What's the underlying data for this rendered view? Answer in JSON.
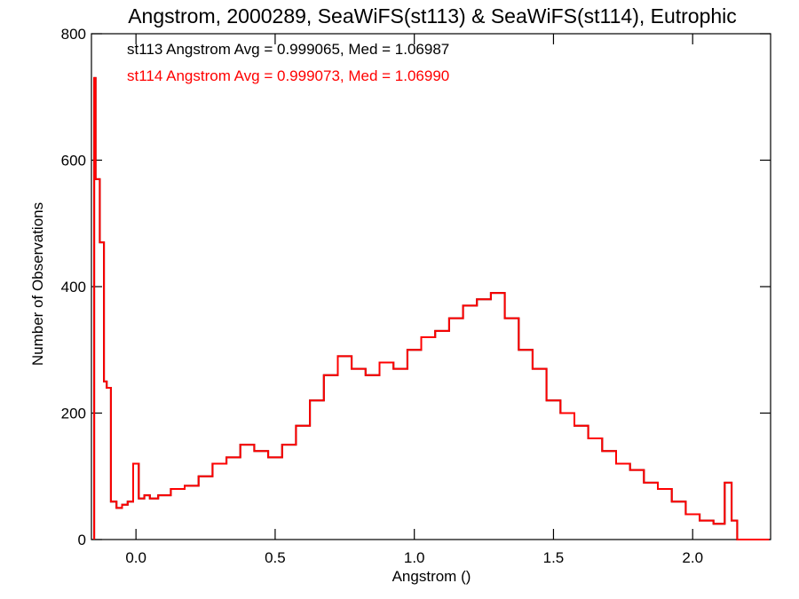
{
  "chart_data": {
    "type": "histogram",
    "title": "Angstrom, 2000289, SeaWiFS(st113) & SeaWiFS(st114), Eutrophic",
    "xlabel": "Angstrom ()",
    "ylabel": "Number of Observations",
    "xlim": [
      -0.16,
      2.28
    ],
    "ylim": [
      0,
      800
    ],
    "x_ticks": [
      0.0,
      0.5,
      1.0,
      1.5,
      2.0
    ],
    "x_tick_labels": [
      "0.0",
      "0.5",
      "1.0",
      "1.5",
      "2.0"
    ],
    "y_ticks": [
      0,
      200,
      400,
      600,
      800
    ],
    "y_tick_labels": [
      "0",
      "200",
      "400",
      "600",
      "800"
    ],
    "grid": false,
    "legend_placement": "top-left",
    "annotations": [
      {
        "text": "st113 Angstrom Avg = 0.999065, Med = 1.06987",
        "color": "#000000"
      },
      {
        "text": "st114 Angstrom Avg = 0.999073, Med = 1.06990",
        "color": "#ff0000"
      }
    ],
    "series": [
      {
        "name": "st113",
        "color": "#000000",
        "x": [
          -0.15,
          -0.14,
          -0.12,
          -0.11,
          -0.1,
          -0.08,
          -0.06,
          -0.04,
          -0.02,
          0.0,
          0.02,
          0.04,
          0.06,
          0.1,
          0.15,
          0.2,
          0.25,
          0.3,
          0.35,
          0.4,
          0.45,
          0.5,
          0.55,
          0.6,
          0.65,
          0.7,
          0.75,
          0.8,
          0.85,
          0.9,
          0.95,
          1.0,
          1.05,
          1.1,
          1.15,
          1.2,
          1.25,
          1.3,
          1.35,
          1.4,
          1.45,
          1.5,
          1.55,
          1.6,
          1.65,
          1.7,
          1.75,
          1.8,
          1.85,
          1.9,
          1.95,
          2.0,
          2.05,
          2.1,
          2.13,
          2.15,
          2.17,
          2.2,
          2.25
        ],
        "y": [
          730,
          570,
          470,
          250,
          240,
          60,
          50,
          55,
          60,
          120,
          65,
          70,
          65,
          70,
          80,
          85,
          100,
          120,
          130,
          150,
          140,
          130,
          150,
          180,
          220,
          260,
          290,
          270,
          260,
          280,
          270,
          300,
          320,
          330,
          350,
          370,
          380,
          390,
          350,
          300,
          270,
          220,
          200,
          180,
          160,
          140,
          120,
          110,
          90,
          80,
          60,
          40,
          30,
          25,
          90,
          30,
          0,
          0,
          0
        ]
      },
      {
        "name": "st114",
        "color": "#ff0000",
        "x": [
          -0.15,
          -0.14,
          -0.12,
          -0.11,
          -0.1,
          -0.08,
          -0.06,
          -0.04,
          -0.02,
          0.0,
          0.02,
          0.04,
          0.06,
          0.1,
          0.15,
          0.2,
          0.25,
          0.3,
          0.35,
          0.4,
          0.45,
          0.5,
          0.55,
          0.6,
          0.65,
          0.7,
          0.75,
          0.8,
          0.85,
          0.9,
          0.95,
          1.0,
          1.05,
          1.1,
          1.15,
          1.2,
          1.25,
          1.3,
          1.35,
          1.4,
          1.45,
          1.5,
          1.55,
          1.6,
          1.65,
          1.7,
          1.75,
          1.8,
          1.85,
          1.9,
          1.95,
          2.0,
          2.05,
          2.1,
          2.13,
          2.15,
          2.17,
          2.2,
          2.25
        ],
        "y": [
          730,
          570,
          470,
          250,
          240,
          60,
          50,
          55,
          60,
          120,
          65,
          70,
          65,
          70,
          80,
          85,
          100,
          120,
          130,
          150,
          140,
          130,
          150,
          180,
          220,
          260,
          290,
          270,
          260,
          280,
          270,
          300,
          320,
          330,
          350,
          370,
          380,
          390,
          350,
          300,
          270,
          220,
          200,
          180,
          160,
          140,
          120,
          110,
          90,
          80,
          60,
          40,
          30,
          25,
          90,
          30,
          0,
          0,
          0
        ]
      }
    ]
  }
}
